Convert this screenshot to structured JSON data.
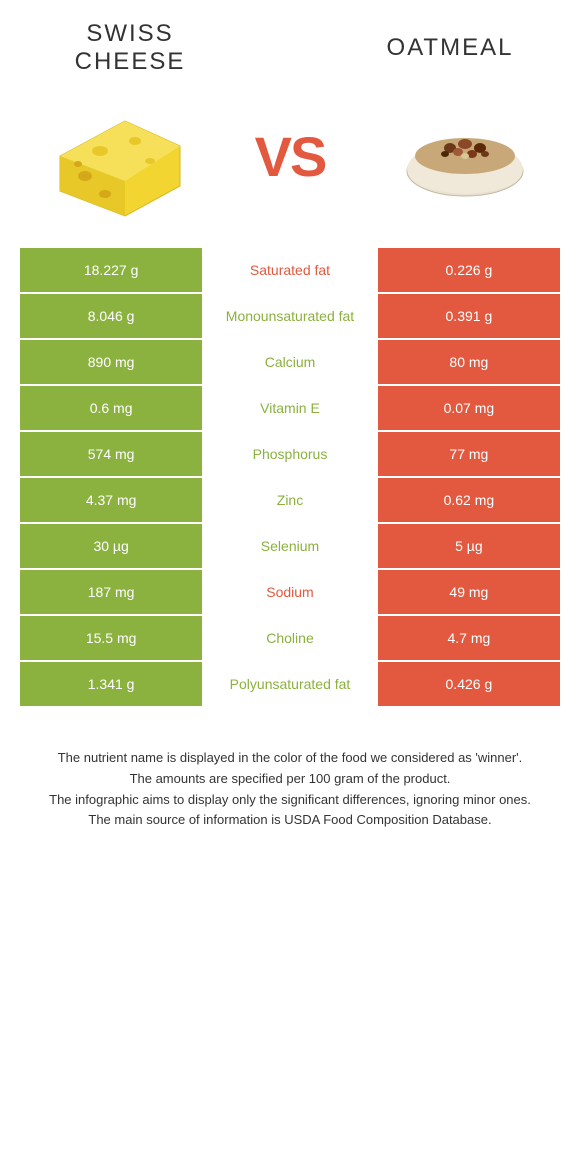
{
  "food_left": {
    "title": "SWISS CHEESE",
    "color": "#8bb13e"
  },
  "food_right": {
    "title": "OATMEAL",
    "color": "#e2593f"
  },
  "vs_text": "VS",
  "rows": [
    {
      "left": "18.227 g",
      "label": "Saturated fat",
      "winner": "orange",
      "right": "0.226 g"
    },
    {
      "left": "8.046 g",
      "label": "Monounsaturated fat",
      "winner": "green",
      "right": "0.391 g"
    },
    {
      "left": "890 mg",
      "label": "Calcium",
      "winner": "green",
      "right": "80 mg"
    },
    {
      "left": "0.6 mg",
      "label": "Vitamin E",
      "winner": "green",
      "right": "0.07 mg"
    },
    {
      "left": "574 mg",
      "label": "Phosphorus",
      "winner": "green",
      "right": "77 mg"
    },
    {
      "left": "4.37 mg",
      "label": "Zinc",
      "winner": "green",
      "right": "0.62 mg"
    },
    {
      "left": "30 µg",
      "label": "Selenium",
      "winner": "green",
      "right": "5 µg"
    },
    {
      "left": "187 mg",
      "label": "Sodium",
      "winner": "orange",
      "right": "49 mg"
    },
    {
      "left": "15.5 mg",
      "label": "Choline",
      "winner": "green",
      "right": "4.7 mg"
    },
    {
      "left": "1.341 g",
      "label": "Polyunsaturated fat",
      "winner": "green",
      "right": "0.426 g"
    }
  ],
  "notes": {
    "line1": "The nutrient name is displayed in the color of the food we considered as 'winner'.",
    "line2": "The amounts are specified per 100 gram of the product.",
    "line3": "The infographic aims to display only the significant differences, ignoring minor ones.",
    "line4": "The main source of information is USDA Food Composition Database."
  }
}
